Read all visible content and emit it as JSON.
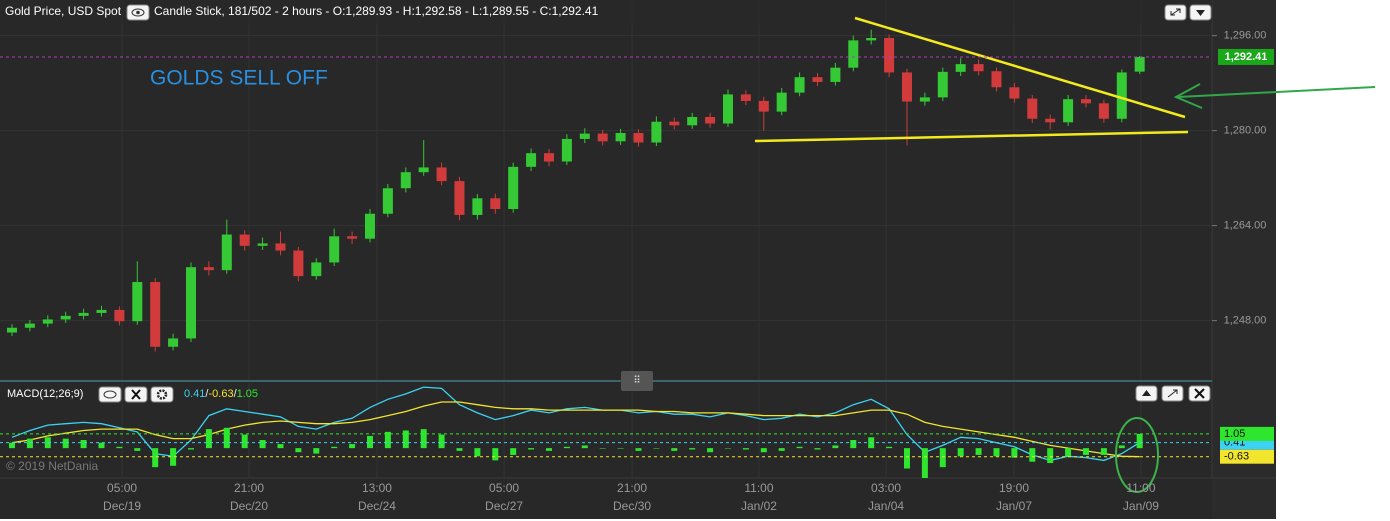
{
  "chart_data": [
    {
      "type": "candlestick",
      "title": "Gold Price, USD Spot",
      "subtitle": "Candle Stick, 181/502 - 2 hours - O:1,289.93 - H:1,292.58 - L:1,289.55 - C:1,292.41",
      "annotation": "GOLDS SELL OFF",
      "up_color": "#35c935",
      "down_color": "#d23b3b",
      "open": [
        1246.0,
        1246.8,
        1247.5,
        1248.2,
        1248.8,
        1249.3,
        1249.8,
        1247.9,
        1254.5,
        1243.6,
        1245.0,
        1257.0,
        1256.5,
        1262.5,
        1260.6,
        1261.0,
        1259.8,
        1255.5,
        1257.8,
        1262.2,
        1261.8,
        1266.0,
        1270.3,
        1273.0,
        1273.8,
        1271.5,
        1265.8,
        1268.6,
        1266.8,
        1273.9,
        1276.2,
        1274.8,
        1278.6,
        1279.5,
        1278.2,
        1279.6,
        1278.0,
        1281.5,
        1280.9,
        1282.3,
        1281.2,
        1286.1,
        1285.0,
        1283.2,
        1286.4,
        1289.0,
        1288.2,
        1290.6,
        1295.2,
        1295.6,
        1289.8,
        1284.9,
        1285.6,
        1289.9,
        1291.2,
        1290.0,
        1287.3,
        1285.4,
        1282.0,
        1281.4,
        1285.3,
        1284.6,
        1282.0,
        1289.93
      ],
      "high": [
        1247.4,
        1248.1,
        1248.9,
        1249.5,
        1250.0,
        1250.5,
        1250.4,
        1258.0,
        1255.2,
        1245.8,
        1257.8,
        1258.0,
        1265.0,
        1263.2,
        1262.0,
        1263.0,
        1260.4,
        1258.5,
        1263.5,
        1263.0,
        1266.8,
        1271.0,
        1273.8,
        1278.4,
        1274.6,
        1272.2,
        1269.3,
        1269.4,
        1274.6,
        1277.0,
        1276.9,
        1279.4,
        1280.4,
        1280.1,
        1280.3,
        1280.2,
        1282.4,
        1282.2,
        1283.0,
        1283.0,
        1286.9,
        1286.8,
        1285.7,
        1287.2,
        1289.8,
        1289.7,
        1291.4,
        1296.0,
        1297.0,
        1296.2,
        1290.4,
        1286.4,
        1290.6,
        1292.2,
        1292.0,
        1290.6,
        1288.0,
        1286.0,
        1282.7,
        1286.0,
        1286.0,
        1285.2,
        1290.3,
        1292.58
      ],
      "low": [
        1245.4,
        1246.2,
        1246.9,
        1247.6,
        1248.2,
        1248.7,
        1247.2,
        1247.3,
        1242.8,
        1243.0,
        1244.4,
        1255.6,
        1255.9,
        1259.8,
        1259.9,
        1259.0,
        1254.6,
        1254.9,
        1257.2,
        1260.9,
        1261.2,
        1265.4,
        1269.6,
        1272.4,
        1270.8,
        1264.9,
        1265.0,
        1266.0,
        1266.2,
        1273.2,
        1274.0,
        1274.2,
        1277.9,
        1277.5,
        1277.6,
        1277.3,
        1277.4,
        1280.2,
        1280.3,
        1280.5,
        1280.6,
        1284.3,
        1280.0,
        1282.6,
        1285.8,
        1287.5,
        1287.6,
        1290.0,
        1294.5,
        1289.0,
        1277.5,
        1284.2,
        1285.0,
        1289.2,
        1289.3,
        1286.6,
        1284.7,
        1281.3,
        1280.2,
        1280.8,
        1283.9,
        1281.3,
        1281.4,
        1289.55
      ],
      "close": [
        1246.8,
        1247.5,
        1248.2,
        1248.8,
        1249.3,
        1249.8,
        1247.9,
        1254.5,
        1243.6,
        1245.0,
        1257.0,
        1256.5,
        1262.5,
        1260.6,
        1261.0,
        1259.8,
        1255.5,
        1257.8,
        1262.2,
        1261.8,
        1266.0,
        1270.3,
        1273.0,
        1273.8,
        1271.5,
        1265.8,
        1268.6,
        1266.8,
        1273.9,
        1276.2,
        1274.8,
        1278.6,
        1279.5,
        1278.2,
        1279.6,
        1278.0,
        1281.5,
        1280.9,
        1282.3,
        1281.2,
        1286.1,
        1285.0,
        1283.2,
        1286.4,
        1289.0,
        1288.2,
        1290.6,
        1295.2,
        1295.6,
        1289.8,
        1284.9,
        1285.6,
        1289.9,
        1291.2,
        1290.0,
        1287.3,
        1285.4,
        1282.0,
        1281.4,
        1285.3,
        1284.6,
        1282.0,
        1289.8,
        1292.41
      ],
      "ylim": [
        1238,
        1302
      ],
      "yticks": [
        {
          "value": 1248,
          "label": "1,248.00"
        },
        {
          "value": 1264,
          "label": "1,264.00"
        },
        {
          "value": 1280,
          "label": "1,280.00"
        },
        {
          "value": 1296,
          "label": "1,296.00"
        }
      ],
      "last_price": {
        "value": 1292.41,
        "label": "1,292.41"
      },
      "xlim": [
        -0.67,
        67.04
      ],
      "xticks": [
        {
          "value": 6.15,
          "label": "05:00"
        },
        {
          "value": 13.24,
          "label": "21:00"
        },
        {
          "value": 20.39,
          "label": "13:00"
        },
        {
          "value": 27.49,
          "label": "05:00"
        },
        {
          "value": 34.64,
          "label": "21:00"
        },
        {
          "value": 41.73,
          "label": "11:00"
        },
        {
          "value": 48.83,
          "label": "03:00"
        },
        {
          "value": 55.98,
          "label": "19:00"
        },
        {
          "value": 63.07,
          "label": "11:00"
        }
      ],
      "xtick_dates": [
        "Dec/19",
        "Dec/20",
        "Dec/24",
        "Dec/27",
        "Dec/30",
        "Jan/02",
        "Jan/04",
        "Jan/07",
        "Jan/09"
      ],
      "grid": true
    },
    {
      "type": "macd",
      "title": "MACD(12;26;9)",
      "separator": "/",
      "copyright": "© 2019 NetDania",
      "ylim": [
        -2.2,
        4.8
      ],
      "series": [
        {
          "color": "#3cd2f2",
          "values": [
            0.8,
            1.3,
            1.7,
            1.8,
            1.9,
            1.8,
            1.5,
            1.2,
            -0.4,
            -0.6,
            0.6,
            2.4,
            2.9,
            2.7,
            2.5,
            2.3,
            1.6,
            1.4,
            1.9,
            2.2,
            3.0,
            3.6,
            4.0,
            4.5,
            4.4,
            3.2,
            2.6,
            2.1,
            2.4,
            2.8,
            2.6,
            2.9,
            3.0,
            2.8,
            2.8,
            2.6,
            2.7,
            2.5,
            2.5,
            2.3,
            2.6,
            2.4,
            2.1,
            2.2,
            2.5,
            2.3,
            2.6,
            3.2,
            3.6,
            2.9,
            1.0,
            -0.3,
            0.2,
            0.8,
            0.7,
            0.4,
            0.1,
            -0.5,
            -0.9,
            -0.6,
            -0.7,
            -0.9,
            -0.4,
            0.41
          ]
        },
        {
          "color": "#f2e52e",
          "values": [
            0.4,
            0.6,
            0.9,
            1.1,
            1.3,
            1.4,
            1.4,
            1.4,
            1.0,
            0.7,
            0.7,
            1.0,
            1.4,
            1.7,
            1.9,
            2.0,
            1.9,
            1.8,
            1.8,
            1.9,
            2.1,
            2.4,
            2.7,
            3.1,
            3.4,
            3.4,
            3.2,
            3.0,
            2.9,
            2.9,
            2.8,
            2.8,
            2.8,
            2.8,
            2.8,
            2.8,
            2.7,
            2.7,
            2.6,
            2.6,
            2.6,
            2.5,
            2.4,
            2.4,
            2.4,
            2.4,
            2.4,
            2.6,
            2.8,
            2.8,
            2.5,
            1.9,
            1.6,
            1.4,
            1.2,
            1.0,
            0.8,
            0.5,
            0.2,
            0.0,
            -0.2,
            -0.4,
            -0.6,
            -0.63
          ]
        },
        {
          "color": "#2ee62e",
          "style": "histogram",
          "values": [
            0.4,
            0.7,
            0.8,
            0.7,
            0.6,
            0.4,
            0.1,
            -0.2,
            -1.4,
            -1.3,
            -0.1,
            1.4,
            1.5,
            1.0,
            0.6,
            0.3,
            -0.3,
            -0.4,
            0.1,
            0.3,
            0.9,
            1.2,
            1.3,
            1.4,
            1.0,
            -0.2,
            -0.6,
            -0.9,
            -0.5,
            -0.1,
            -0.2,
            0.1,
            0.2,
            0.0,
            0.0,
            -0.2,
            0.0,
            -0.2,
            -0.1,
            -0.3,
            0.0,
            -0.1,
            -0.3,
            -0.2,
            0.1,
            -0.1,
            0.2,
            0.6,
            0.8,
            0.1,
            -1.5,
            -2.2,
            -1.4,
            -0.6,
            -0.5,
            -0.6,
            -0.7,
            -1.0,
            -1.1,
            -0.6,
            -0.5,
            -0.5,
            0.2,
            1.05
          ]
        }
      ]
    }
  ]
}
